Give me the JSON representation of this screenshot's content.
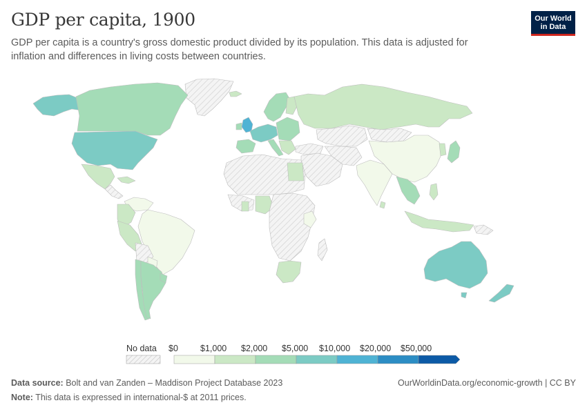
{
  "title": "GDP per capita, 1900",
  "subtitle": "GDP per capita is a country's gross domestic product divided by its population. This data is adjusted for inflation and differences in living costs between countries.",
  "logo": {
    "line1": "Our World",
    "line2": "in Data"
  },
  "legend": {
    "no_data_label": "No data",
    "bins": [
      {
        "label": "$0",
        "color": "#f2f9ea"
      },
      {
        "label": "$1,000",
        "color": "#cbe8c5"
      },
      {
        "label": "$2,000",
        "color": "#a4dcb7"
      },
      {
        "label": "$5,000",
        "color": "#7ccbc4"
      },
      {
        "label": "$10,000",
        "color": "#4fb3d4"
      },
      {
        "label": "$20,000",
        "color": "#2c8dc4"
      },
      {
        "label": "$50,000",
        "color": "#0c5aa6"
      }
    ]
  },
  "colors": {
    "no_data": "#f2f2f2",
    "border": "#bdbdbd",
    "ocean": "#ffffff"
  },
  "footer": {
    "source_label": "Data source:",
    "source_text": "Bolt and van Zanden – Maddison Project Database 2023",
    "note_label": "Note:",
    "note_text": "This data is expressed in international-$ at 2011 prices.",
    "url": "OurWorldinData.org/economic-growth | CC BY"
  }
}
